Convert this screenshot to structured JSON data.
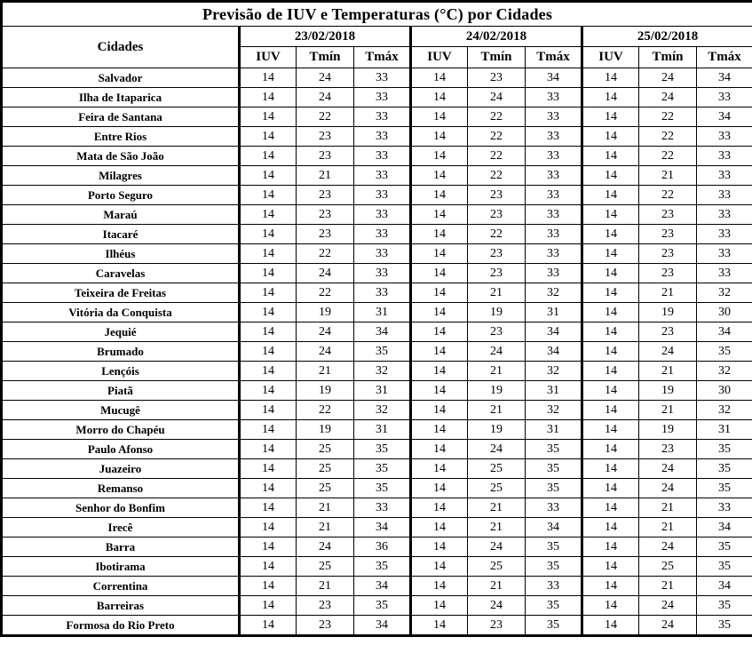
{
  "title": "Previsão de IUV e Temperaturas (°C) por Cidades",
  "table": {
    "city_header": "Cidades",
    "dates": [
      "23/02/2018",
      "24/02/2018",
      "25/02/2018"
    ],
    "sub_headers": [
      "IUV",
      "Tmín",
      "Tmáx"
    ],
    "rows": [
      {
        "city": "Salvador",
        "values": [
          14,
          24,
          33,
          14,
          23,
          34,
          14,
          24,
          34
        ]
      },
      {
        "city": "Ilha de Itaparica",
        "values": [
          14,
          24,
          33,
          14,
          24,
          33,
          14,
          24,
          33
        ]
      },
      {
        "city": "Feira de Santana",
        "values": [
          14,
          22,
          33,
          14,
          22,
          33,
          14,
          22,
          34
        ]
      },
      {
        "city": "Entre Rios",
        "values": [
          14,
          23,
          33,
          14,
          22,
          33,
          14,
          22,
          33
        ]
      },
      {
        "city": "Mata de São João",
        "values": [
          14,
          23,
          33,
          14,
          22,
          33,
          14,
          22,
          33
        ]
      },
      {
        "city": "Milagres",
        "values": [
          14,
          21,
          33,
          14,
          22,
          33,
          14,
          21,
          33
        ]
      },
      {
        "city": "Porto Seguro",
        "values": [
          14,
          23,
          33,
          14,
          23,
          33,
          14,
          22,
          33
        ]
      },
      {
        "city": "Maraú",
        "values": [
          14,
          23,
          33,
          14,
          23,
          33,
          14,
          23,
          33
        ]
      },
      {
        "city": "Itacaré",
        "values": [
          14,
          23,
          33,
          14,
          22,
          33,
          14,
          23,
          33
        ]
      },
      {
        "city": "Ilhéus",
        "values": [
          14,
          22,
          33,
          14,
          23,
          33,
          14,
          23,
          33
        ]
      },
      {
        "city": "Caravelas",
        "values": [
          14,
          24,
          33,
          14,
          23,
          33,
          14,
          23,
          33
        ]
      },
      {
        "city": "Teixeira de Freitas",
        "values": [
          14,
          22,
          33,
          14,
          21,
          32,
          14,
          21,
          32
        ]
      },
      {
        "city": "Vitória da Conquista",
        "values": [
          14,
          19,
          31,
          14,
          19,
          31,
          14,
          19,
          30
        ]
      },
      {
        "city": "Jequié",
        "values": [
          14,
          24,
          34,
          14,
          23,
          34,
          14,
          23,
          34
        ]
      },
      {
        "city": "Brumado",
        "values": [
          14,
          24,
          35,
          14,
          24,
          34,
          14,
          24,
          35
        ]
      },
      {
        "city": "Lençóis",
        "values": [
          14,
          21,
          32,
          14,
          21,
          32,
          14,
          21,
          32
        ]
      },
      {
        "city": "Piatã",
        "values": [
          14,
          19,
          31,
          14,
          19,
          31,
          14,
          19,
          30
        ]
      },
      {
        "city": "Mucugê",
        "values": [
          14,
          22,
          32,
          14,
          21,
          32,
          14,
          21,
          32
        ]
      },
      {
        "city": "Morro do Chapéu",
        "values": [
          14,
          19,
          31,
          14,
          19,
          31,
          14,
          19,
          31
        ]
      },
      {
        "city": "Paulo Afonso",
        "values": [
          14,
          25,
          35,
          14,
          24,
          35,
          14,
          23,
          35
        ]
      },
      {
        "city": "Juazeiro",
        "values": [
          14,
          25,
          35,
          14,
          25,
          35,
          14,
          24,
          35
        ]
      },
      {
        "city": "Remanso",
        "values": [
          14,
          25,
          35,
          14,
          25,
          35,
          14,
          24,
          35
        ]
      },
      {
        "city": "Senhor do Bonfim",
        "values": [
          14,
          21,
          33,
          14,
          21,
          33,
          14,
          21,
          33
        ]
      },
      {
        "city": "Irecê",
        "values": [
          14,
          21,
          34,
          14,
          21,
          34,
          14,
          21,
          34
        ]
      },
      {
        "city": "Barra",
        "values": [
          14,
          24,
          36,
          14,
          24,
          35,
          14,
          24,
          35
        ]
      },
      {
        "city": "Ibotirama",
        "values": [
          14,
          25,
          35,
          14,
          25,
          35,
          14,
          25,
          35
        ]
      },
      {
        "city": "Correntina",
        "values": [
          14,
          21,
          34,
          14,
          21,
          33,
          14,
          21,
          34
        ]
      },
      {
        "city": "Barreiras",
        "values": [
          14,
          23,
          35,
          14,
          24,
          35,
          14,
          24,
          35
        ]
      },
      {
        "city": "Formosa do Rio Preto",
        "values": [
          14,
          23,
          34,
          14,
          23,
          35,
          14,
          24,
          35
        ]
      }
    ]
  }
}
